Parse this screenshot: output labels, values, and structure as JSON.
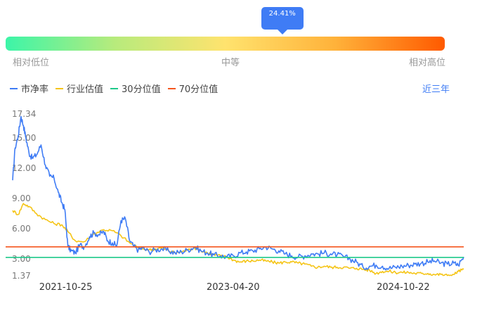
{
  "gauge": {
    "marker_label": "24.41%",
    "marker_value": 0.63,
    "low_label": "相对低位",
    "mid_label": "中等",
    "high_label": "相对高位"
  },
  "legend": {
    "items": [
      {
        "label": "市净率",
        "color": "#3f7cf5"
      },
      {
        "label": "行业估值",
        "color": "#f5c518"
      },
      {
        "label": "30分位值",
        "color": "#1ec98a"
      },
      {
        "label": "70分位值",
        "color": "#f5561e"
      }
    ]
  },
  "period_selector": "近三年",
  "chart_data": {
    "type": "line",
    "yticks": [
      "17.34",
      "15.00",
      "12.00",
      "9.00",
      "6.00",
      "3.00",
      "1.37"
    ],
    "ytick_values": [
      17.34,
      15.0,
      12.0,
      9.0,
      6.0,
      3.0,
      1.37
    ],
    "ylim": [
      1.37,
      17.34
    ],
    "xlim": [
      "2021-05-06",
      "2025-05-06"
    ],
    "xticks": [
      "2021-10-25",
      "2023-04-20",
      "2024-10-22"
    ],
    "percentile_30": 3.15,
    "percentile_70": 4.2,
    "series": [
      {
        "name": "市净率",
        "color": "#3f7cf5",
        "x": [
          "2021-05-06",
          "2021-05-14",
          "2021-05-24",
          "2021-06-02",
          "2021-06-10",
          "2021-06-18",
          "2021-06-28",
          "2021-07-08",
          "2021-07-22",
          "2021-08-06",
          "2021-08-20",
          "2021-09-03",
          "2021-09-17",
          "2021-10-01",
          "2021-10-12",
          "2021-10-22",
          "2021-11-01",
          "2021-11-12",
          "2021-11-25",
          "2021-12-10",
          "2021-12-24",
          "2022-01-10",
          "2022-01-24",
          "2022-02-10",
          "2022-02-25",
          "2022-03-10",
          "2022-03-25",
          "2022-04-08",
          "2022-04-22",
          "2022-05-06",
          "2022-05-20",
          "2022-06-03",
          "2022-06-17",
          "2022-07-01",
          "2022-07-22",
          "2022-08-12",
          "2022-09-02",
          "2022-09-23",
          "2022-10-14",
          "2022-11-04",
          "2022-11-25",
          "2022-12-16",
          "2023-01-06",
          "2023-01-27",
          "2023-02-17",
          "2023-03-10",
          "2023-03-31",
          "2023-04-21",
          "2023-05-12",
          "2023-06-02",
          "2023-06-23",
          "2023-07-14",
          "2023-08-04",
          "2023-08-25",
          "2023-09-15",
          "2023-10-06",
          "2023-10-27",
          "2023-11-17",
          "2023-12-08",
          "2023-12-29",
          "2024-01-19",
          "2024-02-09",
          "2024-03-01",
          "2024-03-22",
          "2024-04-12",
          "2024-05-03",
          "2024-05-24",
          "2024-06-14",
          "2024-07-05",
          "2024-07-26",
          "2024-08-16",
          "2024-09-06",
          "2024-09-27",
          "2024-10-18",
          "2024-11-08",
          "2024-11-29",
          "2024-12-20",
          "2025-01-10",
          "2025-01-31",
          "2025-02-21",
          "2025-03-14",
          "2025-04-04",
          "2025-04-18",
          "2025-05-06"
        ],
        "values": [
          10.8,
          14.0,
          15.2,
          17.1,
          16.2,
          15.0,
          13.5,
          13.0,
          13.3,
          14.3,
          12.3,
          11.2,
          11.0,
          9.6,
          8.6,
          7.9,
          4.2,
          3.8,
          3.6,
          4.4,
          4.2,
          5.2,
          5.6,
          5.4,
          5.7,
          4.8,
          4.6,
          4.3,
          6.8,
          7.0,
          4.8,
          4.2,
          3.9,
          4.1,
          3.7,
          3.9,
          4.0,
          3.8,
          3.6,
          3.7,
          3.9,
          4.2,
          3.8,
          3.6,
          3.4,
          3.3,
          3.2,
          3.3,
          3.6,
          3.7,
          3.8,
          4.0,
          4.2,
          4.0,
          3.8,
          3.5,
          3.3,
          3.2,
          3.3,
          3.5,
          3.5,
          3.6,
          3.5,
          3.4,
          3.2,
          3.0,
          2.7,
          2.2,
          2.3,
          2.4,
          2.3,
          2.1,
          2.2,
          2.3,
          2.4,
          2.5,
          2.6,
          2.7,
          2.8,
          2.6,
          2.5,
          2.6,
          2.4,
          3.2
        ]
      },
      {
        "name": "行业估值",
        "color": "#f5c518",
        "x": [
          "2021-05-06",
          "2021-05-24",
          "2021-06-10",
          "2021-06-28",
          "2021-07-22",
          "2021-08-20",
          "2021-09-17",
          "2021-10-12",
          "2021-11-01",
          "2021-11-25",
          "2021-12-24",
          "2022-01-24",
          "2022-02-25",
          "2022-03-25",
          "2022-04-22",
          "2022-05-20",
          "2022-06-17",
          "2022-07-22",
          "2022-08-12",
          "2022-09-02",
          "2022-09-23",
          "2022-10-14",
          "2022-11-04",
          "2022-11-25",
          "2022-12-16",
          "2023-01-06",
          "2023-01-27",
          "2023-02-17",
          "2023-03-10",
          "2023-03-31",
          "2023-04-21",
          "2023-05-12",
          "2023-06-02",
          "2023-06-23",
          "2023-07-14",
          "2023-08-04",
          "2023-08-25",
          "2023-09-15",
          "2023-10-06",
          "2023-10-27",
          "2023-11-17",
          "2023-12-08",
          "2023-12-29",
          "2024-01-19",
          "2024-02-09",
          "2024-03-01",
          "2024-03-22",
          "2024-04-12",
          "2024-05-03",
          "2024-05-24",
          "2024-06-14",
          "2024-07-05",
          "2024-07-26",
          "2024-08-16",
          "2024-09-06",
          "2024-09-27",
          "2024-10-18",
          "2024-11-08",
          "2024-11-29",
          "2024-12-20",
          "2025-01-10",
          "2025-01-31",
          "2025-02-21",
          "2025-03-14",
          "2025-04-04",
          "2025-04-18",
          "2025-05-06"
        ],
        "values": [
          7.8,
          7.4,
          8.5,
          8.2,
          7.5,
          6.9,
          6.5,
          6.4,
          5.7,
          4.8,
          4.7,
          5.5,
          5.9,
          5.8,
          5.3,
          4.6,
          4.1,
          3.9,
          4.0,
          4.1,
          3.8,
          3.6,
          3.7,
          3.9,
          4.1,
          3.8,
          3.6,
          3.4,
          3.3,
          3.2,
          2.9,
          2.7,
          2.8,
          2.8,
          2.9,
          2.8,
          2.7,
          2.6,
          2.7,
          2.7,
          2.6,
          2.5,
          2.3,
          2.2,
          2.3,
          2.2,
          2.2,
          2.2,
          2.1,
          2.1,
          2.0,
          1.9,
          1.6,
          1.8,
          1.8,
          1.7,
          1.7,
          1.7,
          1.6,
          1.6,
          1.6,
          1.5,
          1.5,
          1.4,
          1.5,
          1.8,
          2.0
        ]
      }
    ]
  }
}
